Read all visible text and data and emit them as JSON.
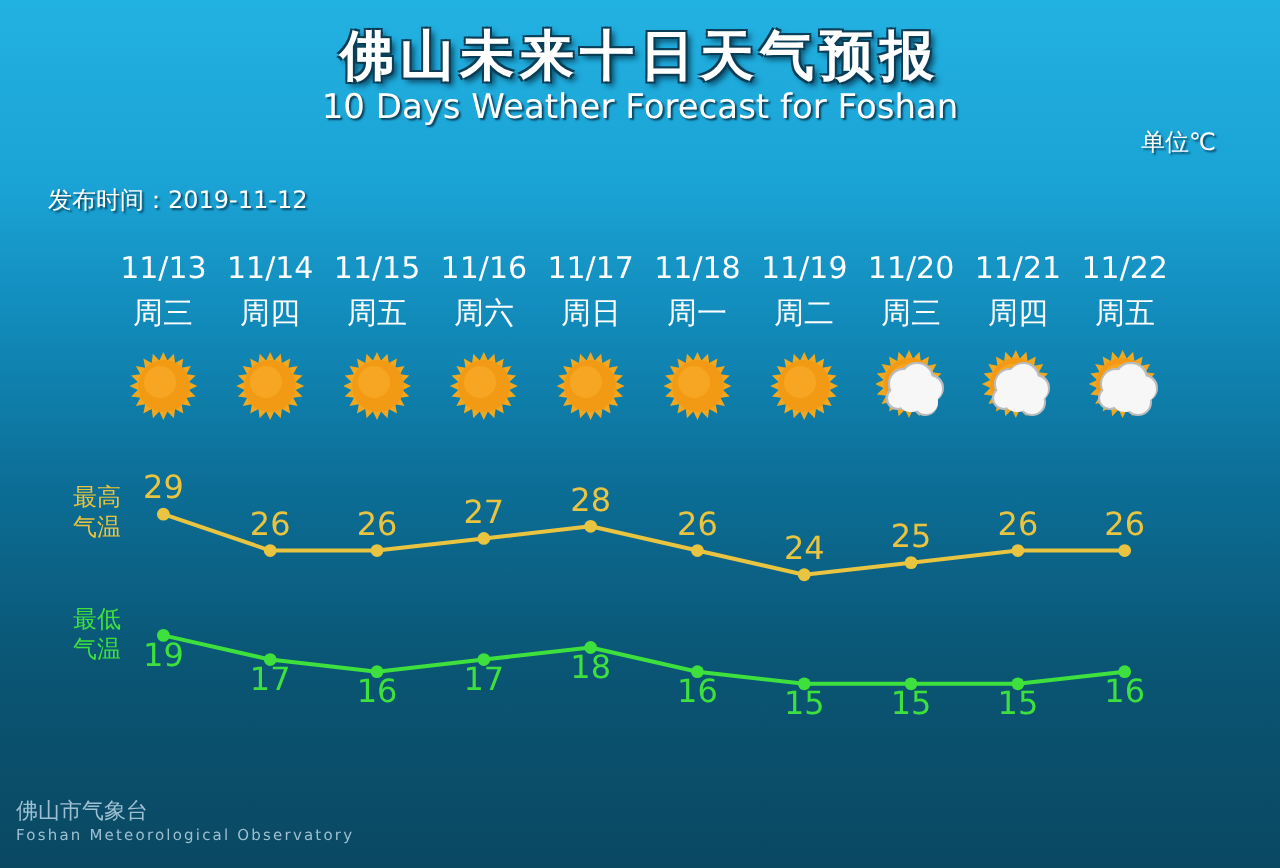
{
  "chart_data": {
    "type": "line",
    "title": "佛山未来十日天气预报",
    "subtitle": "10 Days Weather Forecast for Foshan",
    "categories": [
      "11/13\n周三",
      "11/14\n周四",
      "11/15\n周五",
      "11/16\n周六",
      "11/17\n周日",
      "11/18\n周一",
      "11/19\n周二",
      "11/20\n周三",
      "11/21\n周四",
      "11/22\n周五"
    ],
    "series": [
      {
        "name": "最高气温",
        "color": "#e8c440",
        "values": [
          29,
          26,
          26,
          27,
          28,
          26,
          24,
          25,
          26,
          26
        ]
      },
      {
        "name": "最低气温",
        "color": "#3ee03e",
        "values": [
          19,
          17,
          16,
          17,
          18,
          16,
          15,
          15,
          15,
          16
        ]
      }
    ],
    "tick_labels": "x",
    "marker": "circle",
    "line_style": "solid",
    "data_labels": true,
    "annotations": [
      "单位℃",
      "发布时间：2019-11-12",
      "佛山市气象台",
      "Foshan Meteorological Observatory"
    ]
  }
}
